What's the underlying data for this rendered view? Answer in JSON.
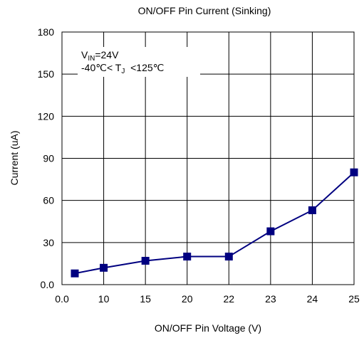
{
  "chart_data": {
    "type": "line",
    "title": "ON/OFF Pin Current (Sinking)",
    "xlabel": "ON/OFF Pin Voltage (V)",
    "ylabel": "Current (uA)",
    "categories": [
      "0.0",
      "10",
      "15",
      "20",
      "22",
      "23",
      "24",
      "25"
    ],
    "ylim": [
      0,
      180
    ],
    "yticks": [
      "0.0",
      "30",
      "60",
      "90",
      "120",
      "150",
      "180"
    ],
    "grid": true,
    "series": [
      {
        "values": [
          8,
          12,
          17,
          20,
          20,
          38,
          53,
          80
        ],
        "color": "#000080"
      }
    ],
    "annotation": {
      "line1_prefix": "V",
      "line1_sub": "IN",
      "line1_suffix": "=24V",
      "line2_prefix": "-40℃< T",
      "line2_sub": "J",
      "line2_suffix": "  <125℃"
    }
  }
}
